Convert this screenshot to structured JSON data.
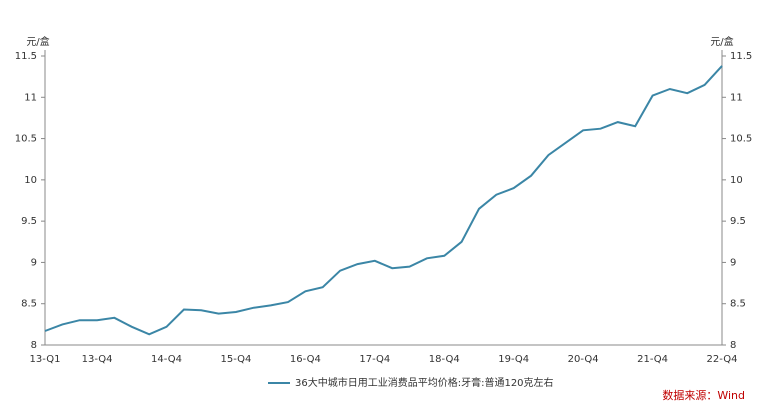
{
  "chart_data": {
    "type": "line",
    "y_label": "元/盒",
    "y2_label": "元/盒",
    "categories": [
      "13-Q1",
      null,
      null,
      "13-Q4",
      null,
      null,
      null,
      "14-Q4",
      null,
      null,
      null,
      "15-Q4",
      null,
      null,
      null,
      "16-Q4",
      null,
      null,
      null,
      "17-Q4",
      null,
      null,
      null,
      "18-Q4",
      null,
      null,
      null,
      "19-Q4",
      null,
      null,
      null,
      "20-Q4",
      null,
      null,
      null,
      "21-Q4",
      null,
      null,
      null,
      "22-Q4"
    ],
    "series": [
      {
        "name": "36大中城市日用工业消费品平均价格:牙膏:普通120克左右",
        "color": "#3b86a6",
        "values": [
          8.17,
          8.25,
          8.3,
          8.3,
          8.33,
          8.22,
          8.13,
          8.22,
          8.43,
          8.42,
          8.38,
          8.4,
          8.45,
          8.48,
          8.52,
          8.65,
          8.7,
          8.9,
          8.98,
          9.02,
          8.93,
          8.95,
          9.05,
          9.08,
          9.25,
          9.65,
          9.82,
          9.9,
          10.05,
          10.3,
          10.45,
          10.6,
          10.62,
          10.7,
          10.65,
          11.02,
          11.1,
          11.05,
          11.15,
          11.38
        ]
      }
    ],
    "ylim": [
      8,
      11.5
    ],
    "yticks": [
      8,
      8.5,
      9,
      9.5,
      10,
      10.5,
      11,
      11.5
    ],
    "y2lim": [
      8,
      11.5
    ],
    "y2ticks": [
      8,
      8.5,
      9,
      9.5,
      10,
      10.5,
      11,
      11.5
    ],
    "grid": false,
    "source": "数据来源：Wind"
  }
}
